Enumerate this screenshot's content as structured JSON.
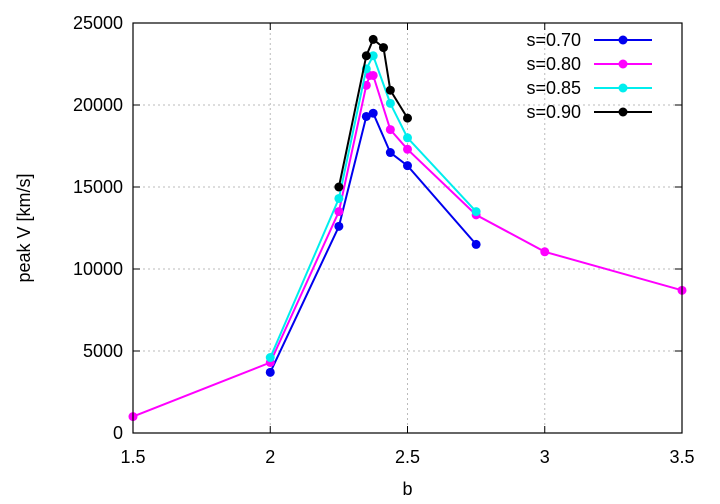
{
  "chart_data": {
    "type": "line",
    "xlabel": "b",
    "ylabel": "peak V [km/s]",
    "xlim": [
      1.5,
      3.5
    ],
    "ylim": [
      0,
      25000
    ],
    "xticks": [
      "1.5",
      "2",
      "2.5",
      "3",
      "3.5"
    ],
    "yticks": [
      "0",
      "5000",
      "10000",
      "15000",
      "20000",
      "25000"
    ],
    "grid": true,
    "legend_position": "top-right",
    "series": [
      {
        "name": "s=0.70",
        "color": "#0000ee",
        "x": [
          2.0,
          2.25,
          2.35,
          2.375,
          2.4375,
          2.5,
          2.75
        ],
        "y": [
          3700,
          12600,
          19300,
          19500,
          17100,
          16300,
          11500
        ]
      },
      {
        "name": "s=0.80",
        "color": "#ff00ff",
        "x": [
          1.5,
          2.0,
          2.25,
          2.35,
          2.3625,
          2.375,
          2.4375,
          2.5,
          2.75,
          3.0,
          3.5
        ],
        "y": [
          1000,
          4300,
          13500,
          21200,
          21800,
          21800,
          18500,
          17300,
          13300,
          11050,
          8700
        ]
      },
      {
        "name": "s=0.85",
        "color": "#00eeee",
        "x": [
          2.0,
          2.25,
          2.35,
          2.375,
          2.4375,
          2.5,
          2.75
        ],
        "y": [
          4600,
          14300,
          22200,
          23000,
          20100,
          18000,
          13500
        ]
      },
      {
        "name": "s=0.90",
        "color": "#000000",
        "x": [
          2.25,
          2.35,
          2.375,
          2.4125,
          2.4375,
          2.5
        ],
        "y": [
          15000,
          23000,
          24000,
          23500,
          20900,
          19200
        ]
      }
    ]
  }
}
